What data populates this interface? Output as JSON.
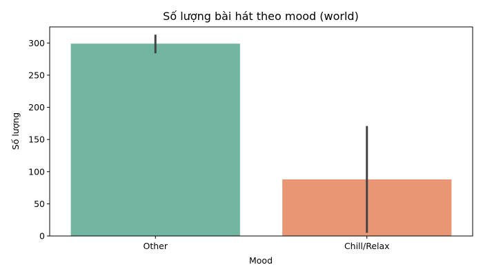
{
  "chart_data": {
    "type": "bar",
    "title": "Số lượng bài hát theo mood (world)",
    "xlabel": "Mood",
    "ylabel": "Số lượng",
    "categories": [
      "Other",
      "Chill/Relax"
    ],
    "values": [
      299,
      88
    ],
    "error_bars": [
      {
        "low": 284,
        "high": 313
      },
      {
        "low": 5,
        "high": 171
      }
    ],
    "colors": [
      "#72b6a1",
      "#e99675"
    ],
    "error_bar_color": "#424242",
    "ylim": [
      0,
      325
    ],
    "yticks": [
      0,
      50,
      100,
      150,
      200,
      250,
      300
    ],
    "grid": false,
    "legend": "none"
  }
}
